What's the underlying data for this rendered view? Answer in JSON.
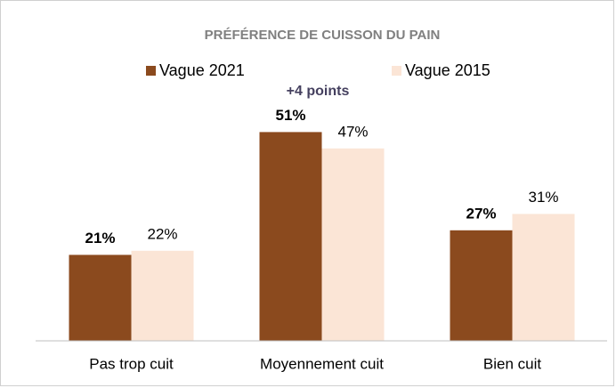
{
  "chart_data": {
    "type": "bar",
    "title": "PRÉFÉRENCE DE CUISSON DU PAIN",
    "annotation": "+4 points",
    "categories": [
      "Pas trop cuit",
      "Moyennement cuit",
      "Bien cuit"
    ],
    "series": [
      {
        "name": "Vague 2021",
        "color": "#8b4a1e",
        "values": [
          21,
          51,
          27
        ],
        "value_labels": [
          "21%",
          "51%",
          "27%"
        ]
      },
      {
        "name": "Vague 2015",
        "color": "#fbe5d6",
        "values": [
          22,
          47,
          31
        ],
        "value_labels": [
          "22%",
          "47%",
          "31%"
        ]
      }
    ],
    "ylim": [
      0,
      60
    ]
  }
}
